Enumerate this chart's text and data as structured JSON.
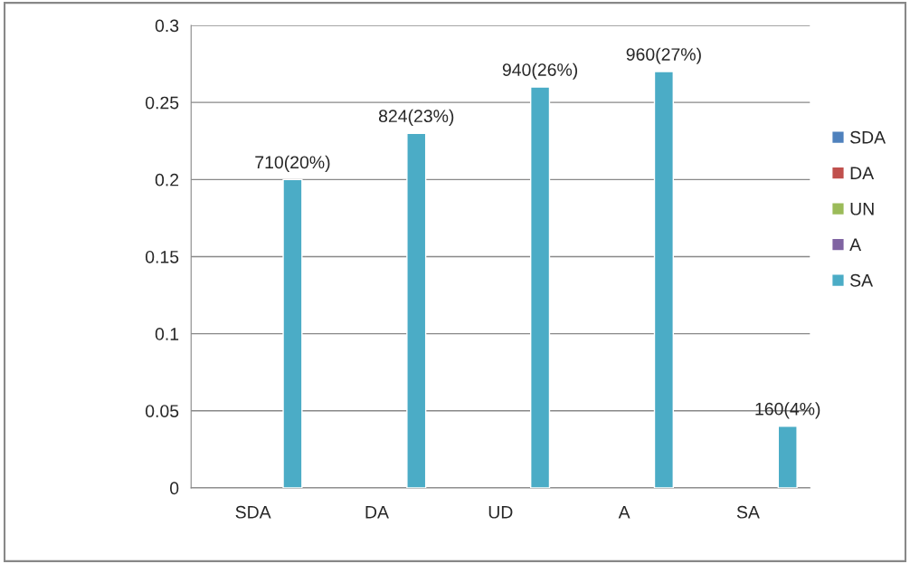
{
  "chart_data": {
    "type": "bar",
    "categories": [
      "SDA",
      "DA",
      "UD",
      "A",
      "SA"
    ],
    "series": [
      {
        "name": "SDA",
        "color": "#4f81bd",
        "values": [
          null,
          null,
          null,
          null,
          null
        ]
      },
      {
        "name": "DA",
        "color": "#c0504d",
        "values": [
          null,
          null,
          null,
          null,
          null
        ]
      },
      {
        "name": "UN",
        "color": "#9bbb59",
        "values": [
          null,
          null,
          null,
          null,
          null
        ]
      },
      {
        "name": "A",
        "color": "#8064a2",
        "values": [
          null,
          null,
          null,
          null,
          null
        ]
      },
      {
        "name": "SA",
        "color": "#4bacc6",
        "values": [
          0.2,
          0.23,
          0.26,
          0.27,
          0.04
        ],
        "value_labels": [
          "710(20%)",
          "824(23%)",
          "940(26%)",
          "960(27%)",
          "160(4%)"
        ]
      }
    ],
    "ylim": [
      0,
      0.3
    ],
    "yticks": [
      0,
      0.05,
      0.1,
      0.15,
      0.2,
      0.25,
      0.3
    ],
    "grid": "y",
    "legend": "right"
  }
}
